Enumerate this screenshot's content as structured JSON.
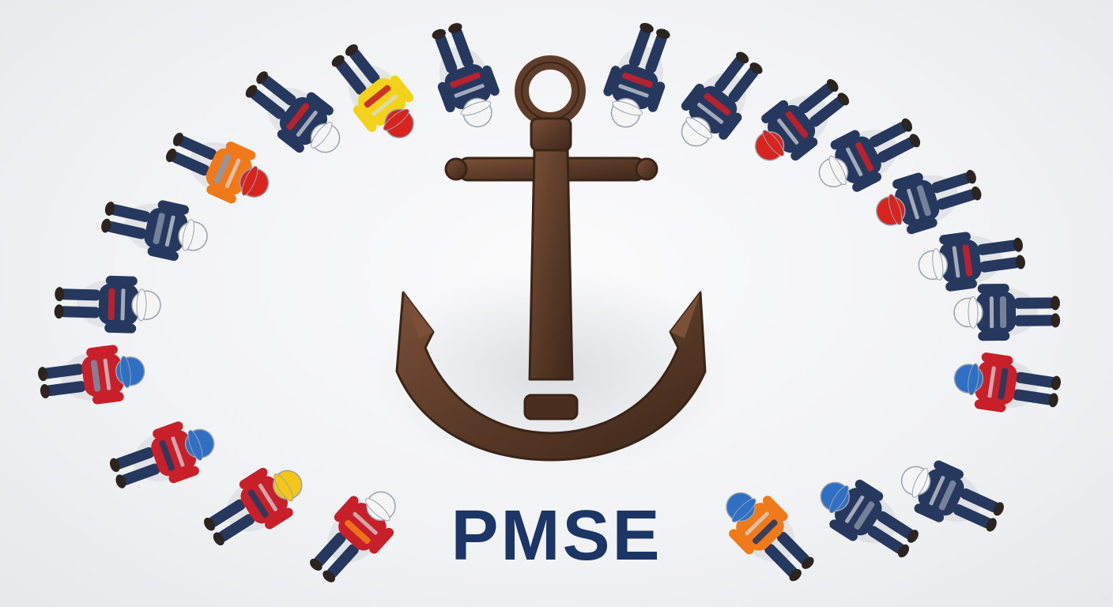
{
  "image": {
    "brand_text": "PMSE",
    "subject": "anchor-icon",
    "colors": {
      "background": "#f3f4f6",
      "text": "#1b3565",
      "anchor": "#5a3a28",
      "anchor_highlight": "#7a5038",
      "coverall_navy": "#26385e",
      "vest_red": "#c8202a",
      "vest_orange": "#f07a1a",
      "jacket_yellow": "#f2d21a",
      "helmet_white": "#f5f5f5",
      "helmet_red": "#d8241e",
      "helmet_blue": "#2f6fc4",
      "helmet_yellow": "#f4c618"
    },
    "workers": [
      {
        "helmet": "#f5f5f5",
        "body": "#26385e",
        "accent": "#7d8aa0"
      },
      {
        "helmet": "#d8241e",
        "body": "#f07a1a",
        "accent": "#8e97a6"
      },
      {
        "helmet": "#f5f5f5",
        "body": "#26385e",
        "accent": "#c8202a"
      },
      {
        "helmet": "#d8241e",
        "body": "#f2d21a",
        "accent": "#c8202a"
      },
      {
        "helmet": "#f5f5f5",
        "body": "#26385e",
        "accent": "#c8202a"
      },
      {
        "helmet": "#f5f5f5",
        "body": "#26385e",
        "accent": "#c8202a"
      },
      {
        "helmet": "#f5f5f5",
        "body": "#26385e",
        "accent": "#c8202a"
      },
      {
        "helmet": "#d8241e",
        "body": "#26385e",
        "accent": "#c8202a"
      },
      {
        "helmet": "#f5f5f5",
        "body": "#26385e",
        "accent": "#c8202a"
      },
      {
        "helmet": "#d8241e",
        "body": "#26385e",
        "accent": "#7d8aa0"
      },
      {
        "helmet": "#f5f5f5",
        "body": "#26385e",
        "accent": "#c8202a"
      },
      {
        "helmet": "#f5f5f5",
        "body": "#26385e",
        "accent": "#7d8aa0"
      },
      {
        "helmet": "#2f6fc4",
        "body": "#c8202a",
        "accent": "#26385e"
      },
      {
        "helmet": "#f5f5f5",
        "body": "#26385e",
        "accent": "#7d8aa0"
      },
      {
        "helmet": "#2f6fc4",
        "body": "#26385e",
        "accent": "#7d8aa0"
      },
      {
        "helmet": "#2f6fc4",
        "body": "#f07a1a",
        "accent": "#26385e"
      },
      {
        "helmet": "#f5f5f5",
        "body": "#c8202a",
        "accent": "#f07a1a"
      },
      {
        "helmet": "#f4c618",
        "body": "#c8202a",
        "accent": "#26385e"
      },
      {
        "helmet": "#2f6fc4",
        "body": "#c8202a",
        "accent": "#26385e"
      },
      {
        "helmet": "#2f6fc4",
        "body": "#c8202a",
        "accent": "#7d8aa0"
      },
      {
        "helmet": "#f5f5f5",
        "body": "#26385e",
        "accent": "#c8202a"
      },
      {
        "helmet": "#f5f5f5",
        "body": "#26385e",
        "accent": "#7d8aa0"
      }
    ]
  }
}
